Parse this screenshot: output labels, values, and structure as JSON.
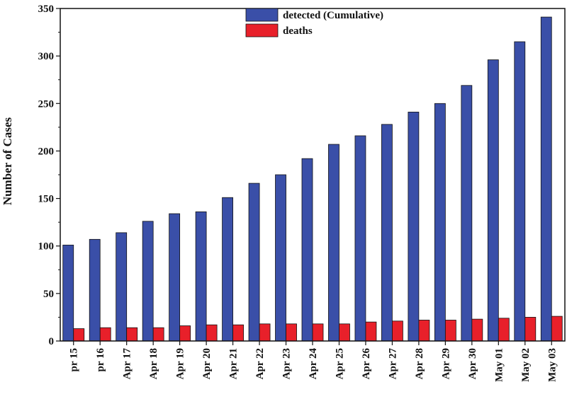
{
  "chart_data": {
    "type": "bar",
    "categories": [
      "pr 15",
      "pr 16",
      "Apr 17",
      "Apr 18",
      "Apr 19",
      "Apr 20",
      "Apr 21",
      "Apr 22",
      "Apr 23",
      "Apr 24",
      "Apr 25",
      "Apr 26",
      "Apr 27",
      "Apr 28",
      "Apr 29",
      "Apr 30",
      "May 01",
      "May 02",
      "May 03"
    ],
    "series": [
      {
        "name": "detected (Cumulative)",
        "color": "#3a4fa8",
        "values": [
          101,
          107,
          114,
          126,
          134,
          136,
          151,
          166,
          175,
          192,
          207,
          216,
          228,
          241,
          250,
          269,
          296,
          315,
          341
        ]
      },
      {
        "name": "deaths",
        "color": "#e8202a",
        "values": [
          13,
          14,
          14,
          14,
          16,
          17,
          17,
          18,
          18,
          18,
          18,
          20,
          21,
          22,
          22,
          23,
          24,
          25,
          26
        ]
      }
    ],
    "xlabel": "",
    "ylabel": "Number of Cases",
    "ylim": [
      0,
      350
    ],
    "yticks": [
      0,
      50,
      100,
      150,
      200,
      250,
      300,
      350
    ],
    "grid": false,
    "legend_position": "top-center"
  }
}
